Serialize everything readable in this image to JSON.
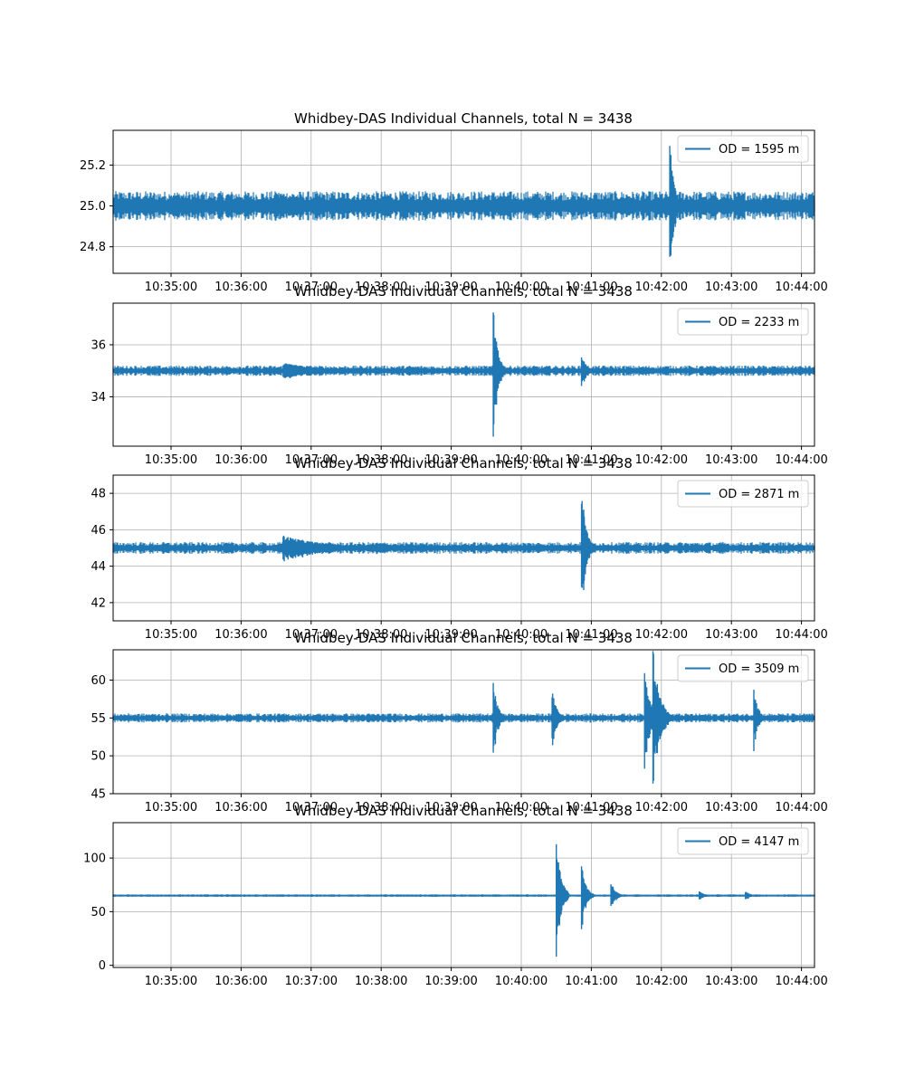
{
  "chart_data": [
    {
      "type": "line",
      "title": "Whidbey-DAS Individual Channels, total N = 3438",
      "series": [
        {
          "name": "OD = 1595 m",
          "baseline": 25.0,
          "noise": 0.018,
          "events": [
            [
              10.583,
              0.06,
              0.2
            ],
            [
              10.608,
              0.07,
              0.15
            ],
            [
              10.702,
              0.34,
              0.02
            ]
          ]
        }
      ],
      "x_ticks": [
        "10:35:00",
        "10:36:00",
        "10:37:00",
        "10:38:00",
        "10:39:00",
        "10:40:00",
        "10:41:00",
        "10:42:00",
        "10:43:00",
        "10:44:00"
      ],
      "y_ticks": [
        24.8,
        25.0,
        25.2
      ],
      "ylim": [
        24.67,
        25.37
      ],
      "grid": true,
      "legend": "upper-right",
      "color": "#1f77b4"
    },
    {
      "type": "line",
      "title": "Whidbey-DAS Individual Channels, total N = 3438",
      "series": [
        {
          "name": "OD = 2233 m",
          "baseline": 35.0,
          "noise": 0.05,
          "events": [
            [
              10.61,
              0.3,
              0.2
            ],
            [
              10.632,
              0.12,
              0.15
            ],
            [
              10.66,
              2.5,
              0.02
            ],
            [
              10.681,
              0.7,
              0.02
            ]
          ]
        }
      ],
      "x_ticks": [
        "10:35:00",
        "10:36:00",
        "10:37:00",
        "10:38:00",
        "10:39:00",
        "10:40:00",
        "10:41:00",
        "10:42:00",
        "10:43:00",
        "10:44:00"
      ],
      "y_ticks": [
        34,
        36
      ],
      "ylim": [
        32.1,
        37.6
      ],
      "grid": true,
      "legend": "upper-right",
      "color": "#1f77b4"
    },
    {
      "type": "line",
      "title": "Whidbey-DAS Individual Channels, total N = 3438",
      "series": [
        {
          "name": "OD = 2871 m",
          "baseline": 45.0,
          "noise": 0.08,
          "events": [
            [
              10.61,
              0.7,
              0.2
            ],
            [
              10.632,
              0.3,
              0.15
            ],
            [
              10.681,
              3.6,
              0.02
            ]
          ]
        }
      ],
      "x_ticks": [
        "10:35:00",
        "10:36:00",
        "10:37:00",
        "10:38:00",
        "10:39:00",
        "10:40:00",
        "10:41:00",
        "10:42:00",
        "10:43:00",
        "10:44:00"
      ],
      "y_ticks": [
        42,
        44,
        46,
        48
      ],
      "ylim": [
        41.0,
        49.0
      ],
      "grid": true,
      "legend": "upper-right",
      "color": "#1f77b4"
    },
    {
      "type": "line",
      "title": "Whidbey-DAS Individual Channels, total N = 3438",
      "series": [
        {
          "name": "OD = 3509 m",
          "baseline": 55.0,
          "noise": 0.15,
          "events": [
            [
              10.66,
              5.0,
              0.02
            ],
            [
              10.674,
              4.0,
              0.02
            ],
            [
              10.696,
              6.0,
              0.03
            ],
            [
              10.698,
              9.5,
              0.03
            ],
            [
              10.722,
              4.0,
              0.02
            ]
          ]
        }
      ],
      "x_ticks": [
        "10:35:00",
        "10:36:00",
        "10:37:00",
        "10:38:00",
        "10:39:00",
        "10:40:00",
        "10:41:00",
        "10:42:00",
        "10:43:00",
        "10:44:00"
      ],
      "y_ticks": [
        45,
        50,
        55,
        60
      ],
      "ylim": [
        45.0,
        64.0
      ],
      "grid": true,
      "legend": "upper-right",
      "color": "#1f77b4"
    },
    {
      "type": "line",
      "title": "Whidbey-DAS Individual Channels, total N = 3438",
      "series": [
        {
          "name": "OD = 4147 m",
          "baseline": 65.0,
          "noise": 0.3,
          "events": [
            [
              10.675,
              62.0,
              0.02
            ],
            [
              10.681,
              32.0,
              0.02
            ],
            [
              10.688,
              14.0,
              0.02
            ],
            [
              10.709,
              5.0,
              0.02
            ],
            [
              10.72,
              5.0,
              0.02
            ]
          ]
        }
      ],
      "x_ticks": [
        "10:35:00",
        "10:36:00",
        "10:37:00",
        "10:38:00",
        "10:39:00",
        "10:40:00",
        "10:41:00",
        "10:42:00",
        "10:43:00",
        "10:44:00"
      ],
      "y_ticks": [
        0,
        50,
        100
      ],
      "ylim": [
        -2,
        133
      ],
      "grid": true,
      "legend": "upper-right",
      "color": "#1f77b4"
    }
  ]
}
